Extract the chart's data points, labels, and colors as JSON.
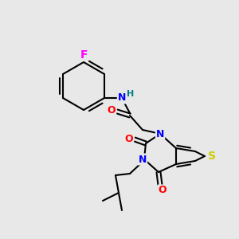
{
  "background_color": "#e8e8e8",
  "atom_colors": {
    "N": "#0000ff",
    "O": "#ff0000",
    "S": "#cccc00",
    "F": "#ff00ff",
    "H": "#008080"
  },
  "bond_color": "#000000",
  "fig_size": [
    3.0,
    3.0
  ],
  "dpi": 100,
  "bond_lw": 1.5,
  "font_size": 9,
  "double_sep": 2.5
}
